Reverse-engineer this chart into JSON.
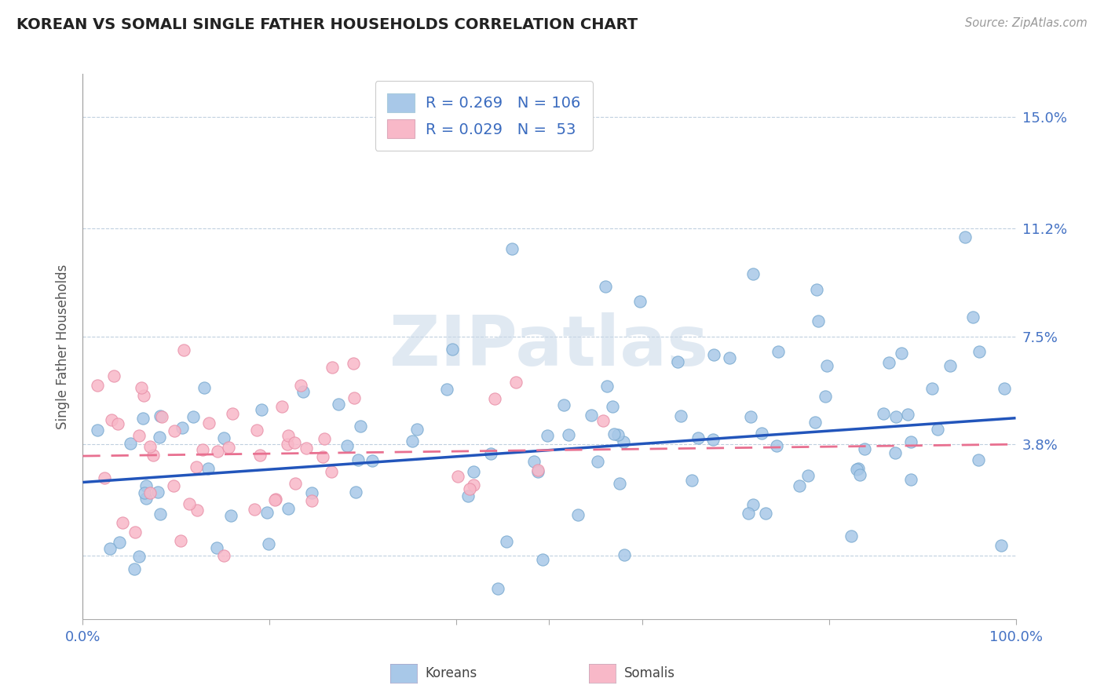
{
  "title": "KOREAN VS SOMALI SINGLE FATHER HOUSEHOLDS CORRELATION CHART",
  "source": "Source: ZipAtlas.com",
  "ylabel": "Single Father Households",
  "yticks": [
    0.0,
    0.038,
    0.075,
    0.112,
    0.15
  ],
  "ytick_labels": [
    "",
    "3.8%",
    "7.5%",
    "11.2%",
    "15.0%"
  ],
  "xlim": [
    0.0,
    1.0
  ],
  "ylim": [
    -0.022,
    0.165
  ],
  "korean_dot_color": "#a8c8e8",
  "korean_dot_edge": "#7aaad0",
  "somali_dot_color": "#f8b8c8",
  "somali_dot_edge": "#e890a8",
  "korean_line_color": "#2255bb",
  "somali_line_color": "#e87090",
  "korean_R": 0.269,
  "korean_N": 106,
  "somali_R": 0.029,
  "somali_N": 53,
  "watermark": "ZIPatlas",
  "watermark_color": "#c8d8e8",
  "background_color": "#ffffff",
  "grid_color": "#c0d0df",
  "title_color": "#222222",
  "tick_label_color": "#4472c4",
  "ylabel_color": "#555555",
  "source_color": "#999999",
  "legend_text_color": "#3a6bbf",
  "legend_box_color_korean": "#a8c8e8",
  "legend_box_color_somali": "#f8b8c8",
  "bottom_legend_korean": "Koreans",
  "bottom_legend_somali": "Somalis",
  "bottom_legend_color": "#444444",
  "korean_slope": 0.022,
  "korean_intercept": 0.025,
  "somali_slope": 0.004,
  "somali_intercept": 0.034
}
